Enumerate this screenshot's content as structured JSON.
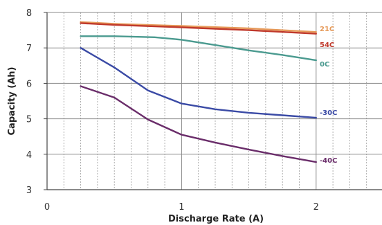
{
  "chart_data": {
    "type": "line",
    "title": "",
    "xlabel": "Discharge Rate (A)",
    "ylabel": "Capacity (Ah)",
    "xlim": [
      0,
      2.5
    ],
    "ylim": [
      3,
      8
    ],
    "x_ticks": [
      "0",
      "1",
      "2"
    ],
    "y_ticks": [
      "3",
      "4",
      "5",
      "6",
      "7",
      "8"
    ],
    "grid": {
      "major": "solid",
      "minor_x": "dashed"
    },
    "legend": "inline labels at right end of each series",
    "series": [
      {
        "name": "21C",
        "color": "#e69a5a",
        "x": [
          0.25,
          0.5,
          1.0,
          1.5,
          2.0
        ],
        "y": [
          7.73,
          7.68,
          7.62,
          7.55,
          7.45
        ]
      },
      {
        "name": "54C",
        "color": "#c0392b",
        "x": [
          0.25,
          0.5,
          1.0,
          1.5,
          2.0
        ],
        "y": [
          7.7,
          7.65,
          7.58,
          7.5,
          7.4
        ]
      },
      {
        "name": "0C",
        "color": "#4a9a8f",
        "x": [
          0.25,
          0.5,
          0.8,
          1.0,
          1.25,
          1.5,
          1.75,
          2.0
        ],
        "y": [
          7.33,
          7.33,
          7.3,
          7.23,
          7.08,
          6.93,
          6.8,
          6.65
        ]
      },
      {
        "name": "-30C",
        "color": "#3a4aa5",
        "x": [
          0.25,
          0.5,
          0.75,
          1.0,
          1.25,
          1.5,
          1.75,
          2.0
        ],
        "y": [
          7.0,
          6.45,
          5.8,
          5.43,
          5.27,
          5.17,
          5.1,
          5.03
        ]
      },
      {
        "name": "-40C",
        "color": "#6a2d6a",
        "x": [
          0.25,
          0.5,
          0.75,
          1.0,
          1.25,
          1.5,
          1.75,
          2.0
        ],
        "y": [
          5.92,
          5.6,
          4.98,
          4.55,
          4.33,
          4.13,
          3.95,
          3.78
        ]
      }
    ]
  }
}
